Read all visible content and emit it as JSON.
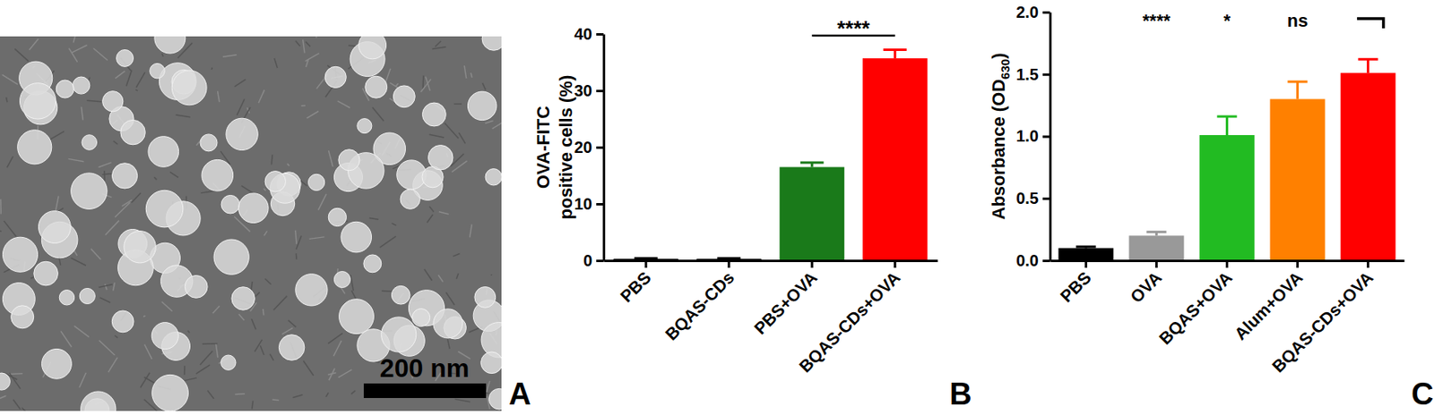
{
  "image": {
    "panel_label": "A",
    "scale_bar_label": "200 nm"
  },
  "chart_data": [
    {
      "type": "bar",
      "panel_label": "B",
      "y_label": [
        "OVA-FITC",
        "positive cells (%)"
      ],
      "categories": [
        "PBS",
        "BQAS-CDs",
        "PBS+OVA",
        "BQAS-CDs+OVA"
      ],
      "values": [
        0.3,
        0.3,
        16.5,
        35.7
      ],
      "error": [
        0.1,
        0.1,
        0.8,
        1.5
      ],
      "colors": [
        "#000000",
        "#000000",
        "#1a7a1a",
        "#ff0000"
      ],
      "ylim": [
        0,
        40
      ],
      "yticks": [
        0,
        10,
        20,
        30,
        40
      ],
      "annotations": [
        {
          "text": "****",
          "between": [
            2,
            3
          ]
        }
      ]
    },
    {
      "type": "bar",
      "panel_label": "C",
      "y_label": {
        "text": "Absorbance (OD",
        "subscript": "630",
        "suffix": ")"
      },
      "categories": [
        "PBS",
        "OVA",
        "BQAS+OVA",
        "Alum+OVA",
        "BQAS-CDs+OVA"
      ],
      "values": [
        0.1,
        0.2,
        1.01,
        1.3,
        1.51
      ],
      "error": [
        0.01,
        0.03,
        0.15,
        0.14,
        0.11
      ],
      "colors": [
        "#000000",
        "#999999",
        "#22bb22",
        "#ff8000",
        "#ff0000"
      ],
      "ylim": [
        0,
        2
      ],
      "yticks": [
        {
          "value": 0,
          "label": "0.0"
        },
        0.5,
        {
          "value": 1,
          "label": "1.0"
        },
        1.5,
        {
          "value": 2,
          "label": "2.0"
        }
      ],
      "annotations": [
        {
          "text": "****",
          "category": 1
        },
        {
          "text": "*",
          "category": 2
        },
        {
          "text": "ns",
          "category": 3
        }
      ]
    }
  ]
}
